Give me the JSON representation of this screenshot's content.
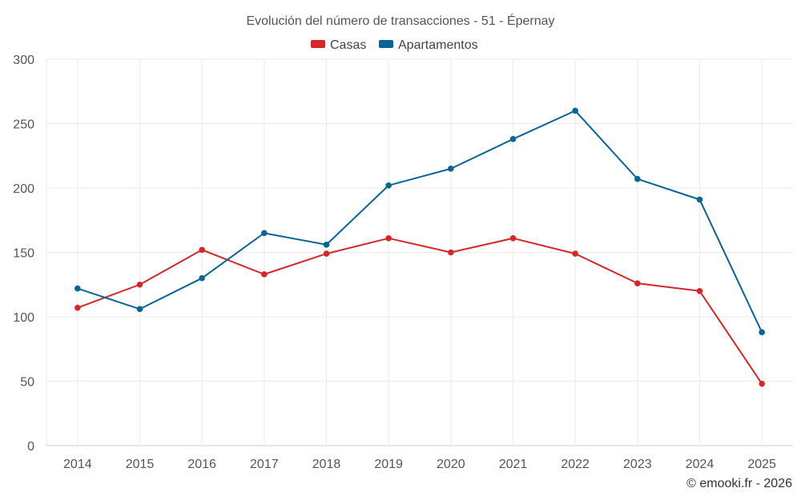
{
  "chart_data": {
    "type": "line",
    "title": "Evolución del número de transacciones - 51 - Épernay",
    "categories": [
      "2014",
      "2015",
      "2016",
      "2017",
      "2018",
      "2019",
      "2020",
      "2021",
      "2022",
      "2023",
      "2024",
      "2025"
    ],
    "series": [
      {
        "name": "Casas",
        "color": "#d62728",
        "values": [
          107,
          125,
          152,
          133,
          149,
          161,
          150,
          161,
          149,
          126,
          120,
          48
        ]
      },
      {
        "name": "Apartamentos",
        "color": "#0a6496",
        "values": [
          122,
          106,
          130,
          165,
          156,
          202,
          215,
          238,
          260,
          207,
          191,
          88
        ]
      }
    ],
    "yticks": [
      0,
      50,
      100,
      150,
      200,
      250,
      300
    ],
    "ylim": [
      0,
      300
    ],
    "xlabel": "",
    "ylabel": "",
    "grid": true,
    "legend_position": "top-center"
  },
  "credit": "© emooki.fr - 2026"
}
